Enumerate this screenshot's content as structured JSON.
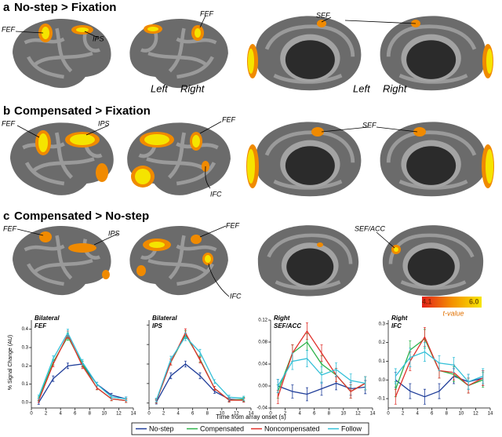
{
  "panels": [
    {
      "letter": "a",
      "title": "No-step > Fixation",
      "labels": [
        "FEF",
        "IPS",
        "FEF",
        "SEF"
      ],
      "hemispheres": [
        "Left",
        "Right",
        "Left",
        "Right"
      ]
    },
    {
      "letter": "b",
      "title": "Compensated > Fixation",
      "labels": [
        "FEF",
        "IPS",
        "FEF",
        "SEF",
        "IFC"
      ]
    },
    {
      "letter": "c",
      "title": "Compensated > No-step",
      "labels": [
        "FEF",
        "IPS",
        "FEF",
        "SEF/ACC",
        "IFC"
      ]
    }
  ],
  "colorbar": {
    "min_label": "4.1",
    "max_label": "6.0",
    "label": "t-value"
  },
  "x_label": "Time from array onset (s)",
  "chart_data": [
    {
      "type": "line",
      "title": [
        "Bilateral",
        "FEF"
      ],
      "y_label": "% Signal Change (AU)",
      "x": [
        1,
        3,
        5,
        7,
        9,
        11,
        13
      ],
      "xlim": [
        0,
        14
      ],
      "xticks": [
        0,
        2,
        4,
        6,
        8,
        10,
        12,
        14
      ],
      "ylim": [
        -0.03,
        0.45
      ],
      "yticks": [
        {
          "value": 0,
          "label": "0.0"
        },
        0.1,
        0.2,
        0.3,
        0.4
      ],
      "ytick_labels": true,
      "series": [
        {
          "name": "No-step",
          "color": "#1f3d99",
          "values": [
            0.0,
            0.13,
            0.2,
            0.21,
            0.1,
            0.04,
            0.02
          ],
          "errors": [
            0.01,
            0.015,
            0.015,
            0.015,
            0.01,
            0.01,
            0.01
          ]
        },
        {
          "name": "Compensated",
          "color": "#2db34a",
          "values": [
            0.02,
            0.22,
            0.36,
            0.21,
            0.08,
            0.02,
            0.01
          ],
          "errors": [
            0.01,
            0.015,
            0.02,
            0.015,
            0.01,
            0.01,
            0.01
          ]
        },
        {
          "name": "Noncompensated",
          "color": "#e0312b",
          "values": [
            0.01,
            0.21,
            0.37,
            0.2,
            0.08,
            0.02,
            0.01
          ],
          "errors": [
            0.01,
            0.015,
            0.02,
            0.015,
            0.01,
            0.01,
            0.01
          ]
        },
        {
          "name": "Follow",
          "color": "#33c0d8",
          "values": [
            0.03,
            0.24,
            0.38,
            0.22,
            0.1,
            0.03,
            0.02
          ],
          "errors": [
            0.01,
            0.015,
            0.02,
            0.015,
            0.01,
            0.01,
            0.01
          ]
        }
      ]
    },
    {
      "type": "line",
      "title": [
        "Bilateral",
        "IPS"
      ],
      "x": [
        1,
        3,
        5,
        7,
        9,
        11,
        13
      ],
      "xlim": [
        0,
        14
      ],
      "xticks": [
        0,
        2,
        4,
        6,
        8,
        10,
        12,
        14
      ],
      "ylim": [
        -0.05,
        0.85
      ],
      "yticks": [
        0,
        0.2,
        0.4,
        0.6,
        0.8
      ],
      "ytick_labels": false,
      "series": [
        {
          "name": "No-step",
          "color": "#1f3d99",
          "values": [
            0.01,
            0.28,
            0.4,
            0.28,
            0.12,
            0.04,
            0.03
          ],
          "errors": [
            0.02,
            0.03,
            0.03,
            0.03,
            0.02,
            0.02,
            0.02
          ]
        },
        {
          "name": "Compensated",
          "color": "#2db34a",
          "values": [
            0.02,
            0.42,
            0.7,
            0.45,
            0.15,
            0.03,
            0.04
          ],
          "errors": [
            0.02,
            0.03,
            0.04,
            0.03,
            0.02,
            0.02,
            0.02
          ]
        },
        {
          "name": "Noncompensated",
          "color": "#e0312b",
          "values": [
            0.02,
            0.42,
            0.72,
            0.44,
            0.15,
            0.03,
            0.03
          ],
          "errors": [
            0.02,
            0.03,
            0.04,
            0.03,
            0.02,
            0.02,
            0.02
          ]
        },
        {
          "name": "Follow",
          "color": "#33c0d8",
          "values": [
            0.03,
            0.45,
            0.68,
            0.52,
            0.22,
            0.06,
            0.05
          ],
          "errors": [
            0.02,
            0.03,
            0.04,
            0.03,
            0.02,
            0.02,
            0.02
          ]
        }
      ]
    },
    {
      "type": "line",
      "title": [
        "Right",
        "SEF/ACC"
      ],
      "x": [
        1,
        3,
        5,
        7,
        9,
        11,
        13
      ],
      "xlim": [
        0,
        14
      ],
      "xticks": [
        0,
        2,
        4,
        6,
        8,
        10,
        12,
        14
      ],
      "ylim": [
        -0.04,
        0.12
      ],
      "yticks": [
        -0.04,
        {
          "value": 0,
          "label": "0.00"
        },
        0.04,
        0.08,
        0.12
      ],
      "ytick_labels": true,
      "series": [
        {
          "name": "No-step",
          "color": "#1f3d99",
          "values": [
            0.0,
            -0.01,
            -0.015,
            -0.005,
            0.005,
            -0.005,
            -0.002
          ],
          "errors": [
            0.012,
            0.012,
            0.012,
            0.012,
            0.012,
            0.012,
            0.012
          ]
        },
        {
          "name": "Compensated",
          "color": "#2db34a",
          "values": [
            -0.01,
            0.06,
            0.08,
            0.04,
            0.02,
            -0.01,
            0.005
          ],
          "errors": [
            0.012,
            0.015,
            0.015,
            0.015,
            0.012,
            0.012,
            0.012
          ]
        },
        {
          "name": "Noncompensated",
          "color": "#e0312b",
          "values": [
            -0.02,
            0.06,
            0.1,
            0.06,
            0.02,
            -0.01,
            0.005
          ],
          "errors": [
            0.012,
            0.015,
            0.015,
            0.015,
            0.012,
            0.012,
            0.012
          ]
        },
        {
          "name": "Follow",
          "color": "#33c0d8",
          "values": [
            0.0,
            0.045,
            0.05,
            0.02,
            0.03,
            0.01,
            0.005
          ],
          "errors": [
            0.012,
            0.015,
            0.015,
            0.015,
            0.012,
            0.012,
            0.012
          ]
        }
      ]
    },
    {
      "type": "line",
      "title": [
        "Right",
        "IFC"
      ],
      "x": [
        1,
        3,
        5,
        7,
        9,
        11,
        13
      ],
      "xlim": [
        0,
        14
      ],
      "xticks": [
        0,
        2,
        4,
        6,
        8,
        10,
        12,
        14
      ],
      "ylim": [
        -0.15,
        0.32
      ],
      "yticks": [
        -0.1,
        {
          "value": 0,
          "label": "0.0"
        },
        0.1,
        0.2,
        0.3
      ],
      "ytick_labels": true,
      "series": [
        {
          "name": "No-step",
          "color": "#1f3d99",
          "values": [
            0.0,
            -0.06,
            -0.09,
            -0.06,
            0.02,
            -0.01,
            0.01
          ],
          "errors": [
            0.04,
            0.04,
            0.04,
            0.04,
            0.04,
            0.04,
            0.04
          ]
        },
        {
          "name": "Compensated",
          "color": "#2db34a",
          "values": [
            -0.05,
            0.16,
            0.22,
            0.05,
            0.03,
            -0.03,
            0.0
          ],
          "errors": [
            0.04,
            0.05,
            0.05,
            0.04,
            0.04,
            0.04,
            0.04
          ]
        },
        {
          "name": "Noncompensated",
          "color": "#e0312b",
          "values": [
            -0.09,
            0.1,
            0.23,
            0.05,
            0.04,
            -0.03,
            0.01
          ],
          "errors": [
            0.04,
            0.05,
            0.05,
            0.04,
            0.04,
            0.04,
            0.04
          ]
        },
        {
          "name": "Follow",
          "color": "#33c0d8",
          "values": [
            0.02,
            0.12,
            0.15,
            0.09,
            0.08,
            -0.01,
            0.02
          ],
          "errors": [
            0.04,
            0.05,
            0.05,
            0.04,
            0.04,
            0.04,
            0.04
          ]
        }
      ]
    }
  ]
}
